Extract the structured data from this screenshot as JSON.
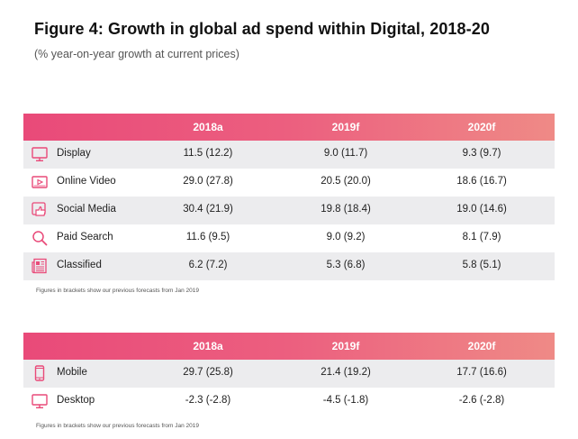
{
  "title": "Figure 4: Growth in global ad spend within Digital, 2018-20",
  "subtitle": "(% year-on-year growth at current prices)",
  "accent": "#e94a79",
  "table1": {
    "headers": [
      "2018a",
      "2019f",
      "2020f"
    ],
    "rows": [
      {
        "label": "Display",
        "icon": "monitor-icon",
        "values": [
          "11.5 (12.2)",
          "9.0 (11.7)",
          "9.3 (9.7)"
        ]
      },
      {
        "label": "Online Video",
        "icon": "video-player-icon",
        "values": [
          "29.0 (27.8)",
          "20.5 (20.0)",
          "18.6 (16.7)"
        ]
      },
      {
        "label": "Social Media",
        "icon": "thumbs-up-icon",
        "values": [
          "30.4 (21.9)",
          "19.8 (18.4)",
          "19.0 (14.6)"
        ]
      },
      {
        "label": "Paid Search",
        "icon": "magnifier-icon",
        "values": [
          "11.6 (9.5)",
          "9.0 (9.2)",
          "8.1 (7.9)"
        ]
      },
      {
        "label": "Classified",
        "icon": "newspaper-icon",
        "values": [
          "6.2 (7.2)",
          "5.3 (6.8)",
          "5.8 (5.1)"
        ]
      }
    ],
    "note": "Figures in brackets show our previous forecasts from Jan 2019"
  },
  "table2": {
    "headers": [
      "2018a",
      "2019f",
      "2020f"
    ],
    "rows": [
      {
        "label": "Mobile",
        "icon": "mobile-phone-icon",
        "values": [
          "29.7 (25.8)",
          "21.4 (19.2)",
          "17.7 (16.6)"
        ]
      },
      {
        "label": "Desktop",
        "icon": "desktop-icon",
        "values": [
          "-2.3 (-2.8)",
          "-4.5 (-1.8)",
          "-2.6 (-2.8)"
        ]
      }
    ],
    "note": "Figures in brackets show our previous forecasts from Jan 2019"
  }
}
